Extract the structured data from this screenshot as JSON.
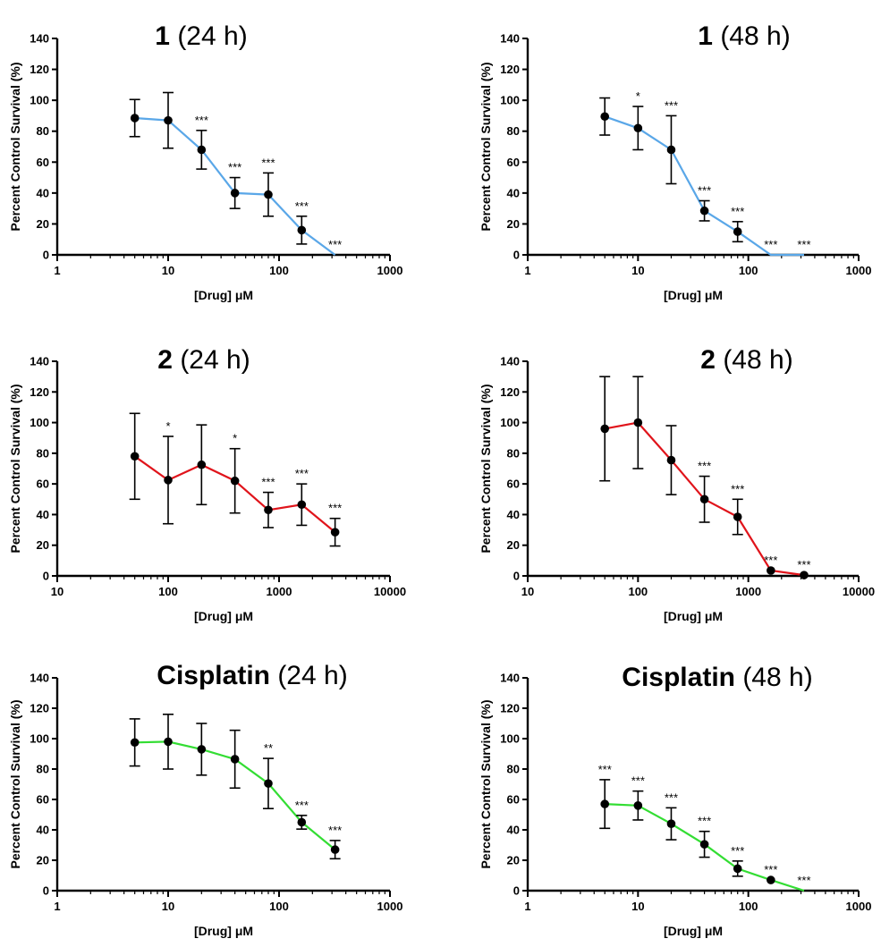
{
  "colors": {
    "blue": "#5aa7e8",
    "red": "#e0141b",
    "green": "#33dd33"
  },
  "chart_data": [
    {
      "type": "line",
      "id": "c1",
      "title": {
        "bold": "1",
        "rest": " (24 h)"
      },
      "xlabel": "[Drug] μM",
      "ylabel": "Percent  Control Survival (%)",
      "xscale": "log",
      "xlim": [
        1,
        1000
      ],
      "ylim": [
        0,
        140
      ],
      "xticks": [
        "1",
        "10",
        "100",
        "1000"
      ],
      "yticks": [
        "0",
        "20",
        "40",
        "60",
        "80",
        "100",
        "120",
        "140"
      ],
      "color": "blue",
      "x": [
        5,
        10,
        20,
        40,
        80,
        160,
        320
      ],
      "y": [
        88.5,
        87,
        68,
        40,
        39,
        16,
        0
      ],
      "err": [
        12,
        18,
        12.5,
        10,
        14,
        9,
        0
      ],
      "sig": [
        "",
        "",
        "***",
        "***",
        "***",
        "***",
        "***"
      ]
    },
    {
      "type": "line",
      "id": "c2",
      "title": {
        "bold": "1",
        "rest": " (48 h)"
      },
      "xlabel": "[Drug] μM",
      "ylabel": "Percent  Control Survival (%)",
      "xscale": "log",
      "xlim": [
        1,
        1000
      ],
      "ylim": [
        0,
        140
      ],
      "xticks": [
        "1",
        "10",
        "100",
        "1000"
      ],
      "yticks": [
        "0",
        "20",
        "40",
        "60",
        "80",
        "100",
        "120",
        "140"
      ],
      "color": "blue",
      "x": [
        5,
        10,
        20,
        40,
        80,
        160,
        320
      ],
      "y": [
        89.5,
        82,
        68,
        28.5,
        15,
        0,
        0
      ],
      "err": [
        12,
        14,
        22,
        6.5,
        6.5,
        0,
        0
      ],
      "sig": [
        "",
        "*",
        "***",
        "***",
        "***",
        "***",
        "***"
      ]
    },
    {
      "type": "line",
      "id": "c3",
      "title": {
        "bold": "2",
        "rest": " (24 h)"
      },
      "xlabel": "[Drug] μM",
      "ylabel": "Percent  Control Survival (%)",
      "xscale": "log",
      "xlim": [
        10,
        10000
      ],
      "ylim": [
        0,
        140
      ],
      "xticks": [
        "10",
        "100",
        "1000",
        "10000"
      ],
      "yticks": [
        "0",
        "20",
        "40",
        "60",
        "80",
        "100",
        "120",
        "140"
      ],
      "color": "red",
      "x": [
        50,
        100,
        200,
        400,
        800,
        1600,
        3200
      ],
      "y": [
        78,
        62.5,
        72.5,
        62,
        43,
        46.5,
        28.5
      ],
      "err": [
        28,
        28.5,
        26,
        21,
        11.5,
        13.5,
        9
      ],
      "sig": [
        "",
        "*",
        "",
        "*",
        "***",
        "***",
        "***"
      ]
    },
    {
      "type": "line",
      "id": "c4",
      "title": {
        "bold": "2",
        "rest": " (48 h)"
      },
      "xlabel": "[Drug] μM",
      "ylabel": "Percent  Control Survival (%)",
      "xscale": "log",
      "xlim": [
        10,
        10000
      ],
      "ylim": [
        0,
        140
      ],
      "xticks": [
        "10",
        "100",
        "1000",
        "10000"
      ],
      "yticks": [
        "0",
        "20",
        "40",
        "60",
        "80",
        "100",
        "120",
        "140"
      ],
      "color": "red",
      "x": [
        50,
        100,
        200,
        400,
        800,
        1600,
        3200
      ],
      "y": [
        96,
        100,
        75.5,
        50,
        38.5,
        3.5,
        0.5
      ],
      "err": [
        34,
        30,
        22.5,
        15,
        11.5,
        0,
        0
      ],
      "sig": [
        "",
        "",
        "",
        "***",
        "***",
        "***",
        "***"
      ]
    },
    {
      "type": "line",
      "id": "c5",
      "title": {
        "bold": "Cisplatin",
        "rest": " (24 h)"
      },
      "xlabel": "[Drug] μM",
      "ylabel": "Percent  Control Survival (%)",
      "xscale": "log",
      "xlim": [
        1,
        1000
      ],
      "ylim": [
        0,
        140
      ],
      "xticks": [
        "1",
        "10",
        "100",
        "1000"
      ],
      "yticks": [
        "0",
        "20",
        "40",
        "60",
        "80",
        "100",
        "120",
        "140"
      ],
      "color": "green",
      "x": [
        5,
        10,
        20,
        40,
        80,
        160,
        320
      ],
      "y": [
        97.5,
        98,
        93,
        86.5,
        70.5,
        45,
        27
      ],
      "err": [
        15.5,
        18,
        17,
        19,
        16.5,
        4.5,
        6
      ],
      "sig": [
        "",
        "",
        "",
        "",
        "**",
        "***",
        "***"
      ]
    },
    {
      "type": "line",
      "id": "c6",
      "title": {
        "bold": "Cisplatin",
        "rest": " (48 h)"
      },
      "xlabel": "[Drug] μM",
      "ylabel": "Percent  Control Survival (%)",
      "xscale": "log",
      "xlim": [
        1,
        1000
      ],
      "ylim": [
        0,
        140
      ],
      "xticks": [
        "1",
        "10",
        "100",
        "1000"
      ],
      "yticks": [
        "0",
        "20",
        "40",
        "60",
        "80",
        "100",
        "120",
        "140"
      ],
      "color": "green",
      "x": [
        5,
        10,
        20,
        40,
        80,
        160,
        320
      ],
      "y": [
        57,
        56,
        44,
        30.5,
        14.5,
        7,
        0
      ],
      "err": [
        16,
        9.5,
        10.5,
        8.5,
        5,
        0,
        0
      ],
      "sig": [
        "***",
        "***",
        "***",
        "***",
        "***",
        "***",
        "***"
      ]
    }
  ]
}
